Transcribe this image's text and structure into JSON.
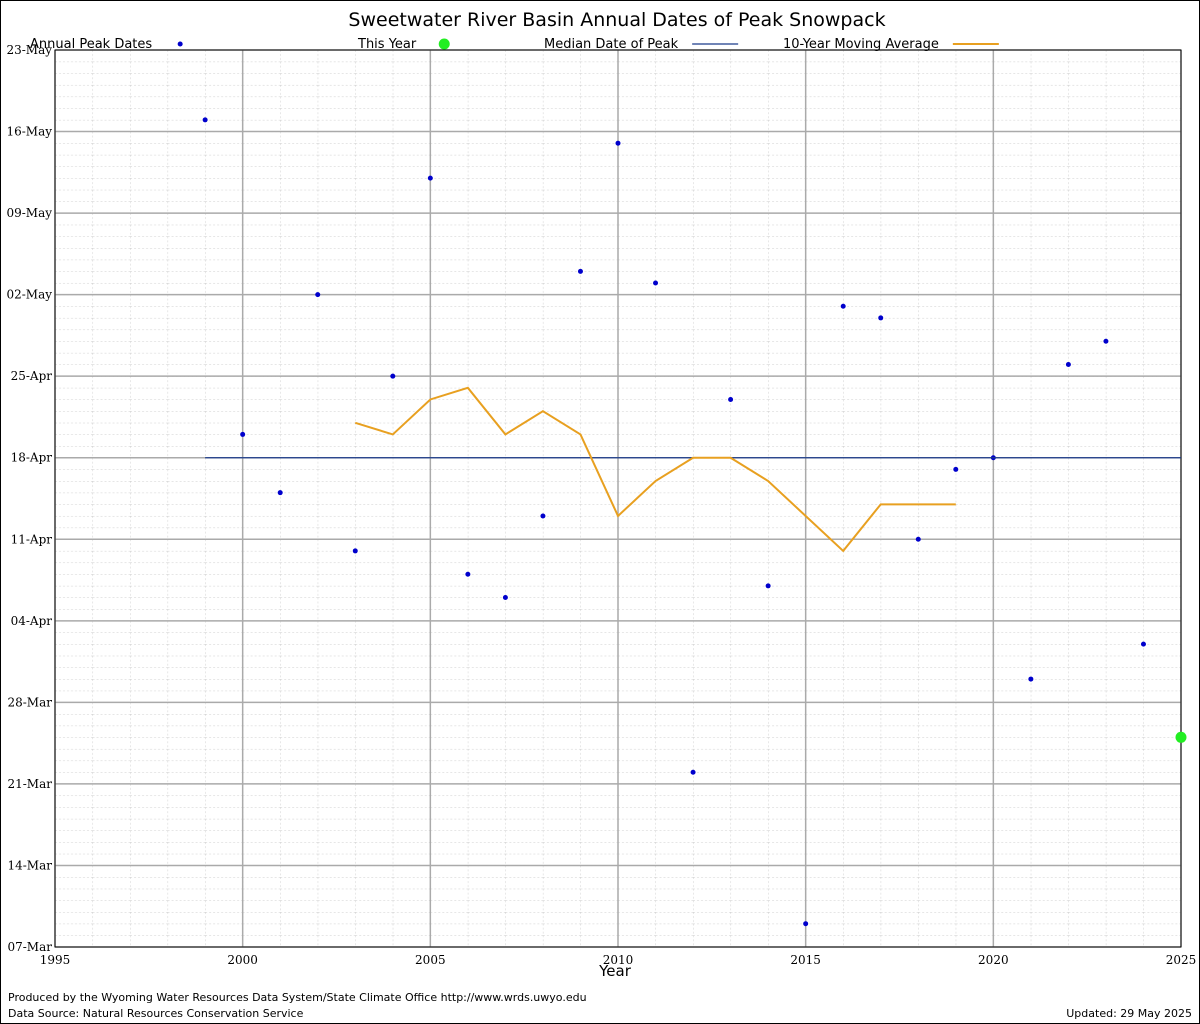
{
  "chart_data": {
    "type": "scatter",
    "title": "Sweetwater River Basin Annual Dates of Peak Snowpack",
    "x_label": "Year",
    "xlim": [
      1995,
      2025
    ],
    "xticks": [
      1995,
      2000,
      2005,
      2010,
      2015,
      2020,
      2025
    ],
    "ylim": [
      66,
      143
    ],
    "yticks": [
      {
        "value": 66,
        "label": "07-Mar"
      },
      {
        "value": 73,
        "label": "14-Mar"
      },
      {
        "value": 80,
        "label": "21-Mar"
      },
      {
        "value": 87,
        "label": "28-Mar"
      },
      {
        "value": 94,
        "label": "04-Apr"
      },
      {
        "value": 101,
        "label": "11-Apr"
      },
      {
        "value": 108,
        "label": "18-Apr"
      },
      {
        "value": 115,
        "label": "25-Apr"
      },
      {
        "value": 122,
        "label": "02-May"
      },
      {
        "value": 129,
        "label": "09-May"
      },
      {
        "value": 136,
        "label": "16-May"
      },
      {
        "value": 143,
        "label": "23-May"
      }
    ],
    "grid": true,
    "series": [
      {
        "name": "Annual Peak Dates",
        "style": "points",
        "color": "#0000cc",
        "x": [
          1999,
          2000,
          2001,
          2002,
          2003,
          2004,
          2005,
          2006,
          2007,
          2008,
          2009,
          2010,
          2011,
          2012,
          2013,
          2014,
          2015,
          2016,
          2017,
          2018,
          2019,
          2020,
          2021,
          2022,
          2023,
          2024
        ],
        "values": [
          137,
          110,
          105,
          122,
          100,
          115,
          132,
          98,
          96,
          103,
          124,
          135,
          123,
          81,
          113,
          97,
          68,
          121,
          120,
          101,
          107,
          108,
          89,
          116,
          118,
          92
        ]
      },
      {
        "name": "This Year",
        "style": "bigpoint",
        "color": "#22ee22",
        "x": [
          2025
        ],
        "values": [
          84
        ]
      },
      {
        "name": "Median Date of Peak",
        "style": "line",
        "color": "#1a3a8a",
        "x": [
          1999,
          2025
        ],
        "values": [
          108,
          108
        ]
      },
      {
        "name": "10-Year Moving Average",
        "style": "line",
        "color": "#e8a020",
        "x": [
          2003,
          2004,
          2005,
          2006,
          2007,
          2008,
          2009,
          2010,
          2011,
          2012,
          2013,
          2014,
          2015,
          2016,
          2017,
          2018,
          2019
        ],
        "values": [
          111,
          110,
          113,
          114,
          110,
          112,
          110,
          103,
          106,
          108,
          108,
          106,
          103,
          100,
          104,
          104,
          104
        ]
      }
    ],
    "footer_left": [
      "Produced by the Wyoming Water Resources Data System/State Climate Office http://www.wrds.uwyo.edu",
      "Data Source: Natural Resources Conservation Service"
    ],
    "footer_right": "Updated: 29 May 2025"
  }
}
